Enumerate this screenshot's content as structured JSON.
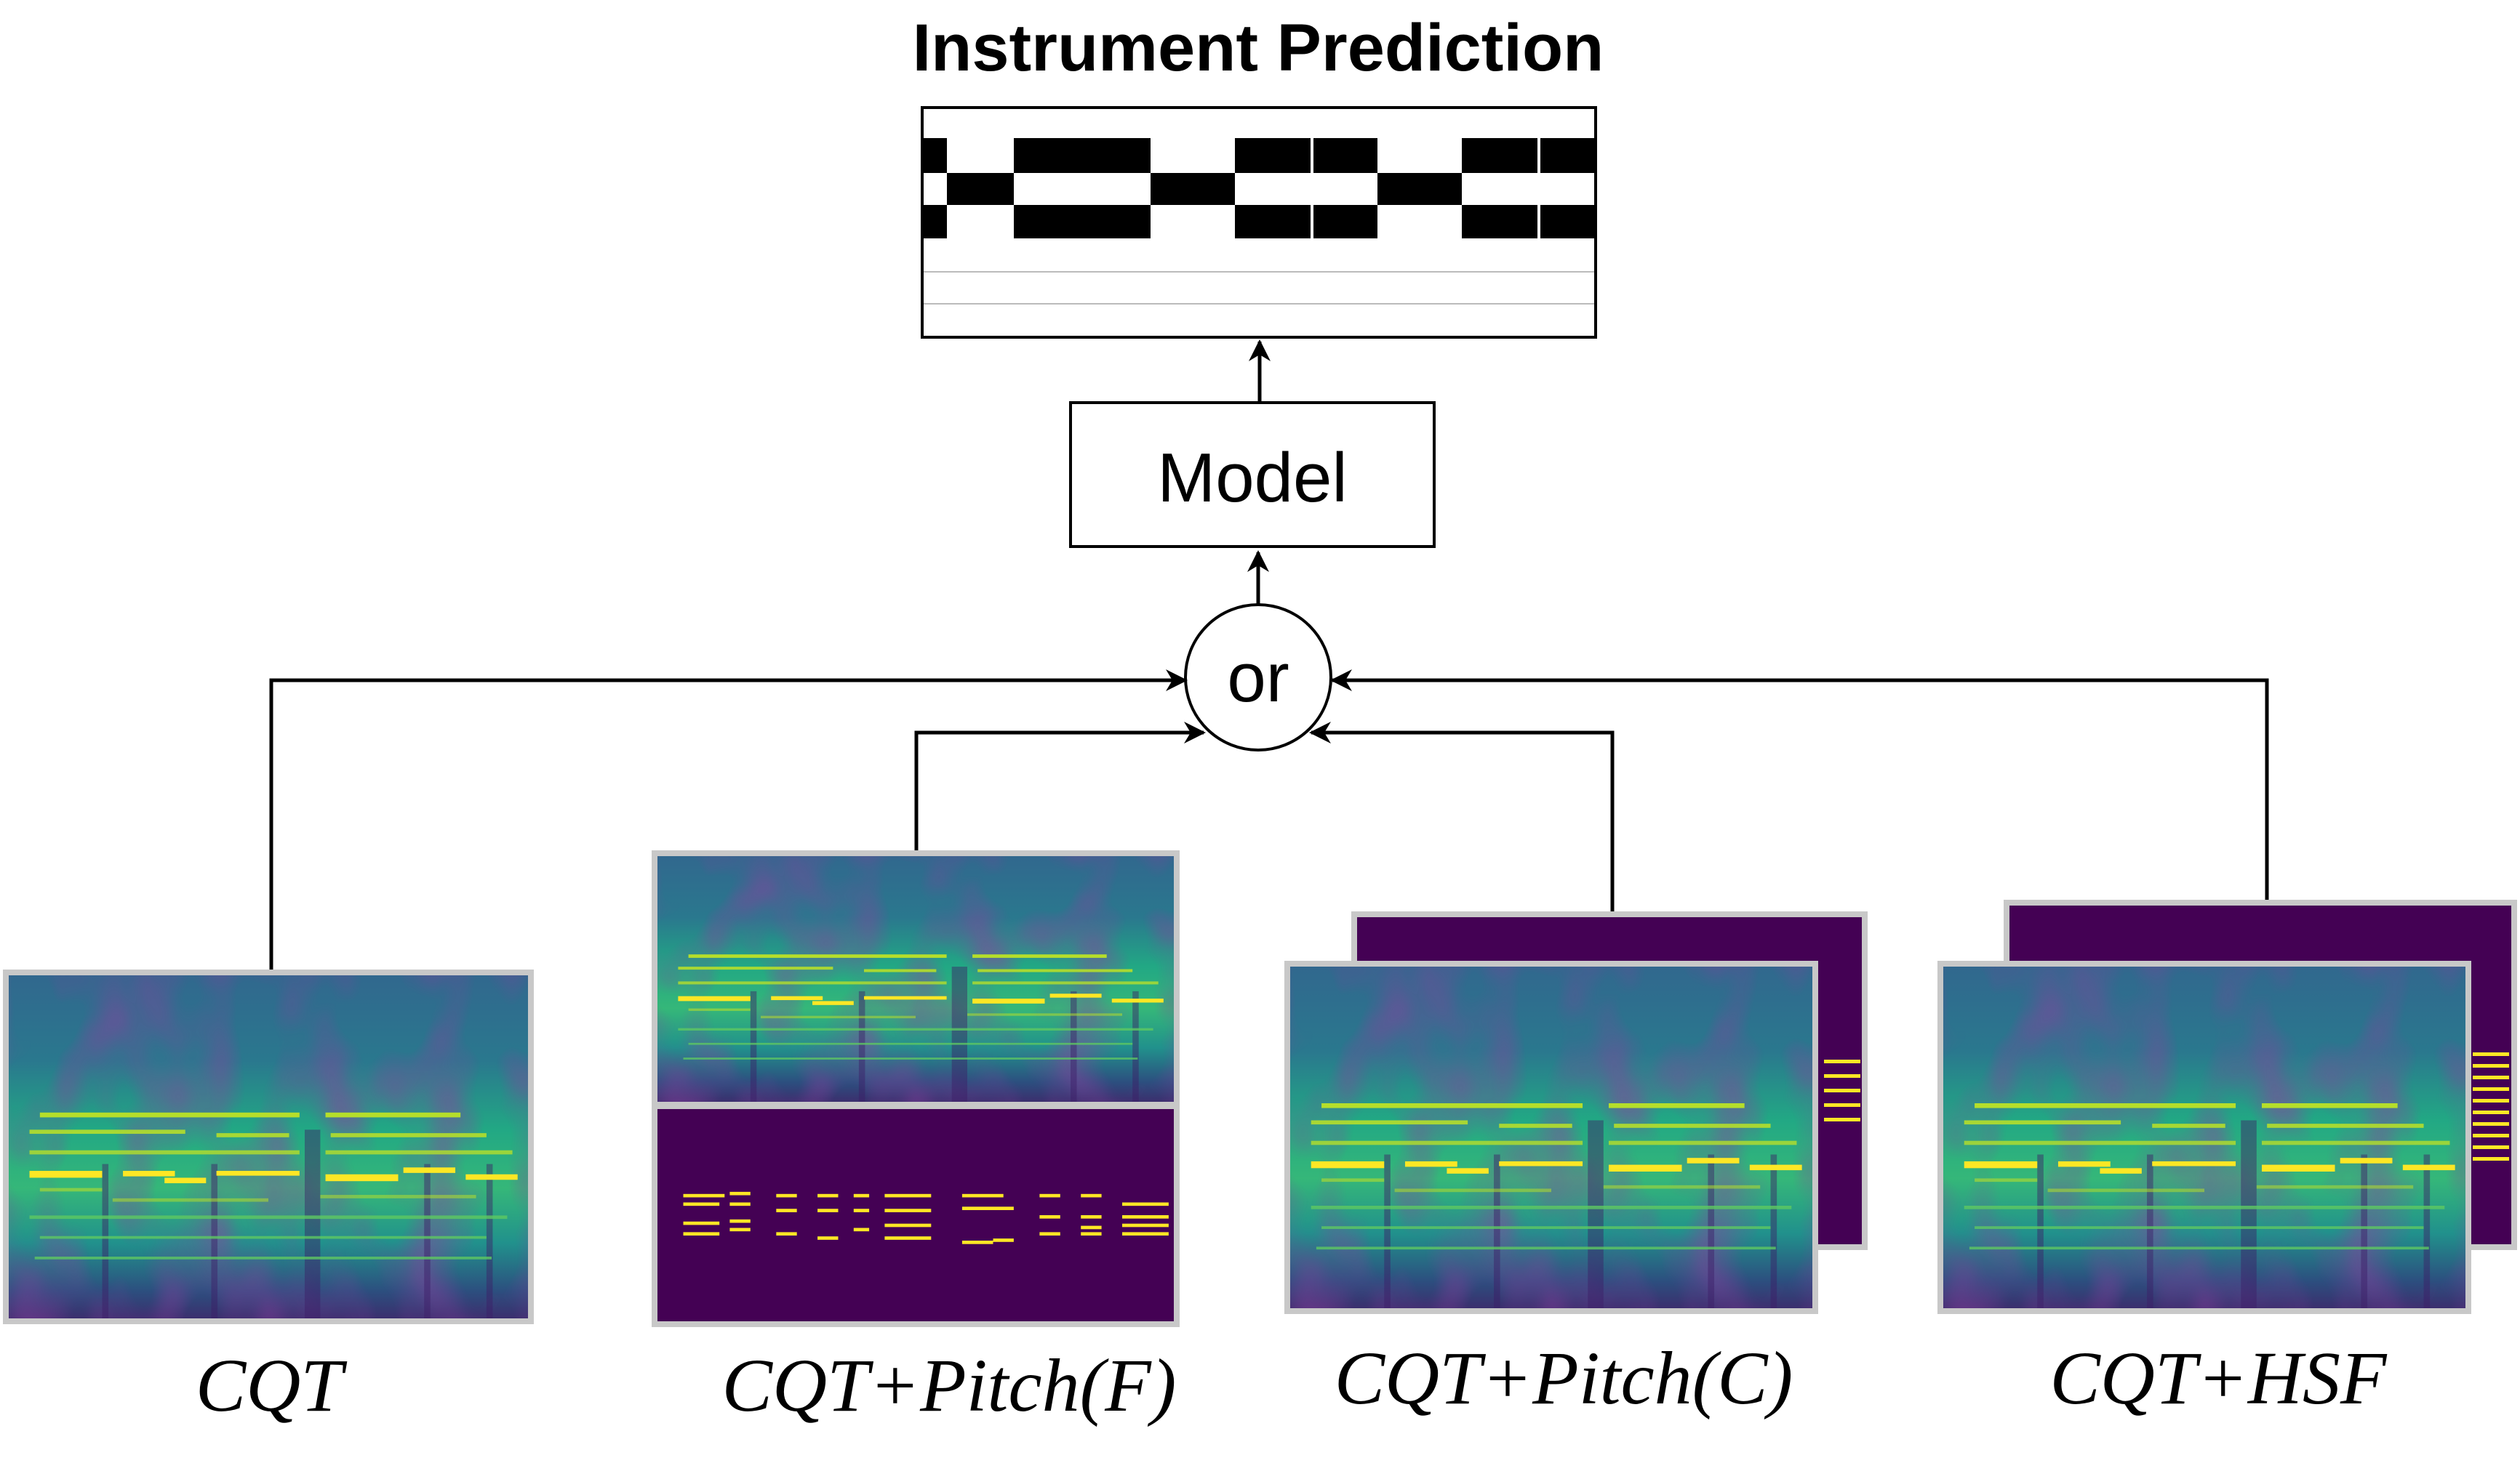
{
  "title": "Instrument Prediction",
  "model_label": "Model",
  "combine_label": "or",
  "inputs": [
    {
      "label": "CQT"
    },
    {
      "label": "CQT+Pitch(F)"
    },
    {
      "label": "CQT+Pitch(C)"
    },
    {
      "label": "CQT+HSF"
    }
  ],
  "colors": {
    "spectrogram_dark": "#440154",
    "spectrogram_mid": "#21918c",
    "spectrogram_bright": "#fde725",
    "frame_border": "#c8c8c8"
  }
}
